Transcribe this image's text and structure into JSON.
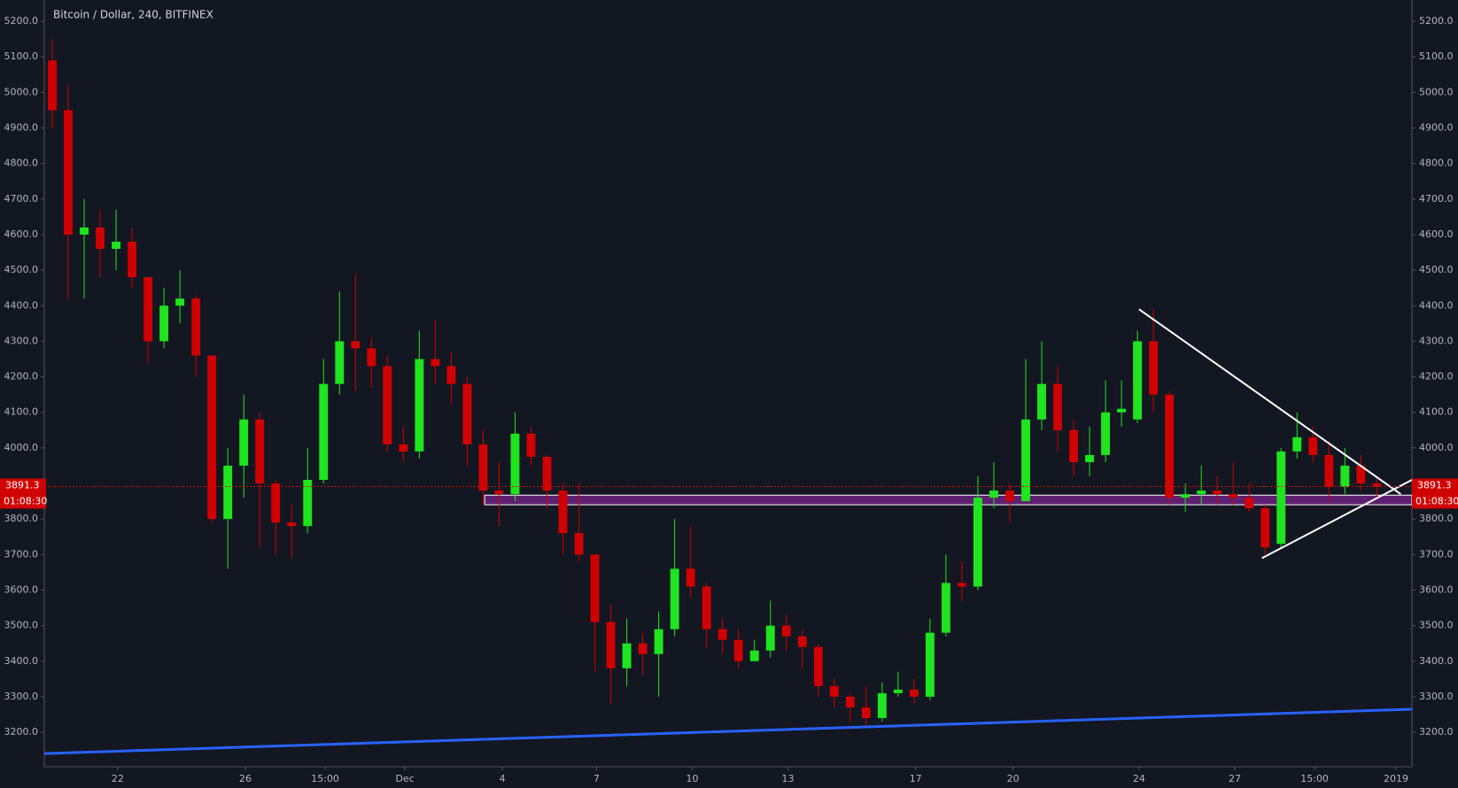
{
  "chart_data": {
    "type": "candlestick",
    "title": "Bitcoin / Dollar, 240, BITFINEX",
    "up_color": "#1fe41f",
    "down_color": "#d00000",
    "open": [
      5090,
      4950,
      4600,
      4620,
      4560,
      4580,
      4480,
      4300,
      4400,
      4420,
      4260,
      3800,
      3950,
      4080,
      3900,
      3790,
      3780,
      3910,
      4180,
      4300,
      4280,
      4230,
      4010,
      3990,
      4250,
      4230,
      4180,
      4010,
      3880,
      3870,
      4040,
      3975,
      3880,
      3760,
      3700,
      3510,
      3380,
      3450,
      3420,
      3490,
      3660,
      3610,
      3490,
      3460,
      3400,
      3430,
      3500,
      3470,
      3440,
      3330,
      3300,
      3270,
      3240,
      3310,
      3320,
      3300,
      3480,
      3620,
      3610,
      3860,
      3880,
      3850,
      4080,
      4180,
      4050,
      3960,
      3980,
      4100,
      4080,
      4300,
      4150,
      3860,
      3870,
      3880,
      3870,
      3860,
      3830,
      3730,
      3990,
      4030,
      3980,
      3890,
      3950,
      3900
    ],
    "high": [
      5150,
      5020,
      4700,
      4670,
      4670,
      4620,
      4480,
      4450,
      4500,
      4430,
      4260,
      4000,
      4150,
      4100,
      3910,
      3840,
      4000,
      4250,
      4440,
      4490,
      4310,
      4260,
      4060,
      4330,
      4360,
      4270,
      4200,
      4050,
      3960,
      4100,
      4060,
      3980,
      3900,
      3900,
      3700,
      3560,
      3520,
      3480,
      3540,
      3800,
      3780,
      3620,
      3520,
      3490,
      3460,
      3570,
      3530,
      3490,
      3450,
      3350,
      3310,
      3330,
      3340,
      3370,
      3350,
      3520,
      3700,
      3680,
      3920,
      3960,
      3900,
      4250,
      4300,
      4230,
      4080,
      4060,
      4190,
      4190,
      4330,
      4390,
      4160,
      3900,
      3950,
      3920,
      3960,
      3900,
      3840,
      4000,
      4100,
      4060,
      4020,
      4000,
      3980,
      3920
    ],
    "low": [
      4900,
      4420,
      4420,
      4480,
      4500,
      4450,
      4240,
      4280,
      4350,
      4200,
      3790,
      3660,
      3860,
      3720,
      3700,
      3690,
      3760,
      3900,
      4150,
      4160,
      4170,
      3990,
      3960,
      3970,
      4180,
      4120,
      3950,
      3840,
      3780,
      3850,
      3950,
      3830,
      3700,
      3680,
      3370,
      3280,
      3330,
      3360,
      3300,
      3470,
      3580,
      3440,
      3420,
      3380,
      3400,
      3410,
      3430,
      3380,
      3300,
      3270,
      3230,
      3220,
      3230,
      3300,
      3280,
      3290,
      3470,
      3570,
      3600,
      3830,
      3790,
      3850,
      4050,
      3990,
      3920,
      3920,
      3960,
      4060,
      4070,
      4100,
      3840,
      3820,
      3840,
      3840,
      3840,
      3820,
      3700,
      3720,
      3970,
      3960,
      3850,
      3870,
      3880,
      3860
    ],
    "close": [
      4950,
      4600,
      4620,
      4560,
      4580,
      4480,
      4300,
      4400,
      4420,
      4260,
      3800,
      3950,
      4080,
      3900,
      3790,
      3780,
      3910,
      4180,
      4300,
      4280,
      4230,
      4010,
      3990,
      4250,
      4230,
      4180,
      4010,
      3880,
      3870,
      4040,
      3975,
      3880,
      3760,
      3700,
      3510,
      3380,
      3450,
      3420,
      3490,
      3660,
      3610,
      3490,
      3460,
      3400,
      3430,
      3500,
      3470,
      3440,
      3330,
      3300,
      3270,
      3240,
      3310,
      3320,
      3300,
      3480,
      3620,
      3610,
      3860,
      3880,
      3850,
      4080,
      4180,
      4050,
      3960,
      3980,
      4100,
      4110,
      4300,
      4150,
      3860,
      3870,
      3880,
      3870,
      3860,
      3830,
      3720,
      3990,
      4030,
      3980,
      3890,
      3950,
      3900,
      3891.3
    ],
    "xlim": [
      0,
      85.7
    ],
    "ylim": [
      3103,
      5260
    ],
    "xticks": [
      {
        "value": 4.6,
        "label": "22"
      },
      {
        "value": 12.6,
        "label": "26"
      },
      {
        "value": 17.6,
        "label": "15:00"
      },
      {
        "value": 22.6,
        "label": "Dec"
      },
      {
        "value": 28.7,
        "label": "4"
      },
      {
        "value": 34.6,
        "label": "7"
      },
      {
        "value": 40.6,
        "label": "10"
      },
      {
        "value": 46.6,
        "label": "13"
      },
      {
        "value": 54.6,
        "label": "17"
      },
      {
        "value": 60.7,
        "label": "20"
      },
      {
        "value": 68.6,
        "label": "24"
      },
      {
        "value": 74.6,
        "label": "27"
      },
      {
        "value": 79.6,
        "label": "15:00"
      },
      {
        "value": 84.7,
        "label": "2019"
      }
    ],
    "yticks": [
      {
        "value": 3200,
        "label": "3200.0"
      },
      {
        "value": 3300,
        "label": "3300.0"
      },
      {
        "value": 3400,
        "label": "3400.0"
      },
      {
        "value": 3500,
        "label": "3500.0"
      },
      {
        "value": 3600,
        "label": "3600.0"
      },
      {
        "value": 3700,
        "label": "3700.0"
      },
      {
        "value": 3800,
        "label": "3800.0"
      },
      {
        "value": 3900,
        "label": "3900.0"
      },
      {
        "value": 4000,
        "label": "4000.0"
      },
      {
        "value": 4100,
        "label": "4100.0"
      },
      {
        "value": 4200,
        "label": "4200.0"
      },
      {
        "value": 4300,
        "label": "4300.0"
      },
      {
        "value": 4400,
        "label": "4400.0"
      },
      {
        "value": 4500,
        "label": "4500.0"
      },
      {
        "value": 4600,
        "label": "4600.0"
      },
      {
        "value": 4700,
        "label": "4700.0"
      },
      {
        "value": 4800,
        "label": "4800.0"
      },
      {
        "value": 4900,
        "label": "4900.0"
      },
      {
        "value": 5000,
        "label": "5000.0"
      },
      {
        "value": 5100,
        "label": "5100.0"
      },
      {
        "value": 5200,
        "label": "5200.0"
      }
    ],
    "last_price": 3891.3,
    "countdown": "01:08:30",
    "last_color": "#d00000",
    "zone": {
      "x": [
        27.6,
        85.7
      ],
      "y": [
        3840,
        3867
      ],
      "color": "#9c27b0"
    },
    "trendlines": [
      {
        "color": "#2962ff",
        "x": [
          0,
          85.7
        ],
        "y": [
          3140,
          3265
        ]
      },
      {
        "color": "#ffffff",
        "x": [
          68.6,
          85.0
        ],
        "y": [
          4390,
          3870
        ]
      },
      {
        "color": "#ffffff",
        "x": [
          76.3,
          85.7
        ],
        "y": [
          3690,
          3910
        ]
      }
    ]
  }
}
